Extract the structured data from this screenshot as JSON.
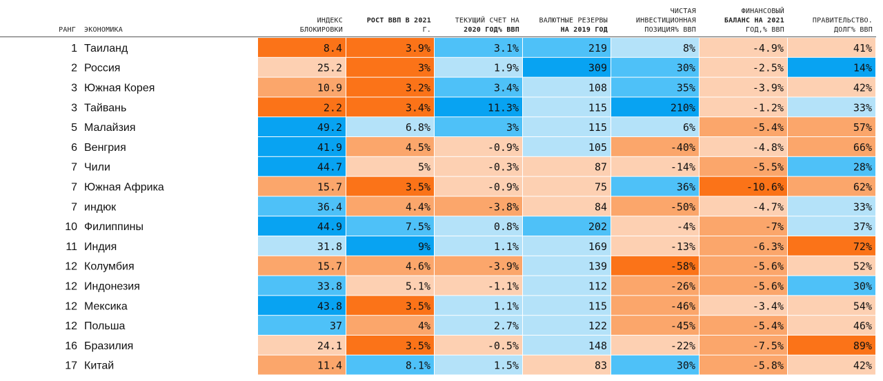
{
  "chart_data": {
    "type": "table",
    "colors": {
      "orange_strong": "#fb7318",
      "orange_mid": "#fba66b",
      "orange_light": "#fdd0b2",
      "blue_light": "#b4e2f9",
      "blue_mid": "#4ec1f8",
      "blue_strong": "#08a3f2",
      "header_rule": "#555555"
    },
    "headers": {
      "rank": "РАНГ",
      "economy": "ЭКОНОМИКА",
      "columns": [
        {
          "key": "lockdown",
          "lines": [
            "ИНДЕКС",
            "БЛОКИРОВКИ"
          ]
        },
        {
          "key": "gdp_growth",
          "lines": [
            "РОСТ ВВП В 2021",
            "Г."
          ]
        },
        {
          "key": "current_account",
          "lines": [
            "ТЕКУЩИЙ СЧЕТ НА",
            "2020 ГОД% ВВП"
          ]
        },
        {
          "key": "fx_reserves",
          "lines": [
            "ВАЛЮТНЫЕ РЕЗЕРВЫ",
            "НА 2019 ГОД"
          ]
        },
        {
          "key": "niip",
          "lines": [
            "ЧИСТАЯ",
            "ИНВЕСТИЦИОННАЯ",
            "ПОЗИЦИЯ% ВВП"
          ]
        },
        {
          "key": "fiscal_balance",
          "lines": [
            "ФИНАНСОВЫЙ",
            "БАЛАНС НА 2021",
            "ГОД,% ВВП"
          ]
        },
        {
          "key": "gov_debt",
          "lines": [
            "ПРАВИТЕЛЬСТВО.",
            "ДОЛГ% ВВП"
          ]
        }
      ]
    },
    "rows": [
      {
        "rank": "1",
        "economy": "Таиланд",
        "values": [
          "8.4",
          "3.9%",
          "3.1%",
          "219",
          "8%",
          "-4.9%",
          "41%"
        ],
        "shades": [
          "orange_strong",
          "orange_strong",
          "blue_mid",
          "blue_mid",
          "blue_light",
          "orange_light",
          "orange_light"
        ]
      },
      {
        "rank": "2",
        "economy": "Россия",
        "values": [
          "25.2",
          "3%",
          "1.9%",
          "309",
          "30%",
          "-2.5%",
          "14%"
        ],
        "shades": [
          "orange_light",
          "orange_strong",
          "blue_light",
          "blue_strong",
          "blue_mid",
          "orange_light",
          "blue_strong"
        ]
      },
      {
        "rank": "3",
        "economy": "Южная Корея",
        "values": [
          "10.9",
          "3.2%",
          "3.4%",
          "108",
          "35%",
          "-3.9%",
          "42%"
        ],
        "shades": [
          "orange_mid",
          "orange_strong",
          "blue_mid",
          "blue_light",
          "blue_mid",
          "orange_light",
          "orange_light"
        ]
      },
      {
        "rank": "3",
        "economy": "Тайвань",
        "values": [
          "2.2",
          "3.4%",
          "11.3%",
          "115",
          "210%",
          "-1.2%",
          "33%"
        ],
        "shades": [
          "orange_strong",
          "orange_strong",
          "blue_strong",
          "blue_light",
          "blue_strong",
          "orange_light",
          "blue_light"
        ]
      },
      {
        "rank": "5",
        "economy": "Малайзия",
        "values": [
          "49.2",
          "6.8%",
          "3%",
          "115",
          "6%",
          "-5.4%",
          "57%"
        ],
        "shades": [
          "blue_strong",
          "blue_light",
          "blue_mid",
          "blue_light",
          "blue_light",
          "orange_mid",
          "orange_mid"
        ]
      },
      {
        "rank": "6",
        "economy": "Венгрия",
        "values": [
          "41.9",
          "4.5%",
          "-0.9%",
          "105",
          "-40%",
          "-4.8%",
          "66%"
        ],
        "shades": [
          "blue_strong",
          "orange_mid",
          "orange_light",
          "blue_light",
          "orange_mid",
          "orange_light",
          "orange_mid"
        ]
      },
      {
        "rank": "7",
        "economy": "Чили",
        "values": [
          "44.7",
          "5%",
          "-0.3%",
          "87",
          "-14%",
          "-5.5%",
          "28%"
        ],
        "shades": [
          "blue_strong",
          "orange_light",
          "orange_light",
          "orange_light",
          "orange_light",
          "orange_mid",
          "blue_mid"
        ]
      },
      {
        "rank": "7",
        "economy": "Южная Африка",
        "values": [
          "15.7",
          "3.5%",
          "-0.9%",
          "75",
          "36%",
          "-10.6%",
          "62%"
        ],
        "shades": [
          "orange_mid",
          "orange_strong",
          "orange_light",
          "orange_light",
          "blue_mid",
          "orange_strong",
          "orange_mid"
        ]
      },
      {
        "rank": "7",
        "economy": "индюк",
        "values": [
          "36.4",
          "4.4%",
          "-3.8%",
          "84",
          "-50%",
          "-4.7%",
          "33%"
        ],
        "shades": [
          "blue_mid",
          "orange_mid",
          "orange_mid",
          "orange_light",
          "orange_mid",
          "orange_light",
          "blue_light"
        ]
      },
      {
        "rank": "10",
        "economy": "Филиппины",
        "values": [
          "44.9",
          "7.5%",
          "0.8%",
          "202",
          "-4%",
          "-7%",
          "37%"
        ],
        "shades": [
          "blue_strong",
          "blue_mid",
          "blue_light",
          "blue_mid",
          "orange_light",
          "orange_mid",
          "blue_light"
        ]
      },
      {
        "rank": "11",
        "economy": "Индия",
        "values": [
          "31.8",
          "9%",
          "1.1%",
          "169",
          "-13%",
          "-6.3%",
          "72%"
        ],
        "shades": [
          "blue_light",
          "blue_strong",
          "blue_light",
          "blue_light",
          "orange_light",
          "orange_mid",
          "orange_strong"
        ]
      },
      {
        "rank": "12",
        "economy": "Колумбия",
        "values": [
          "15.7",
          "4.6%",
          "-3.9%",
          "139",
          "-58%",
          "-5.6%",
          "52%"
        ],
        "shades": [
          "orange_mid",
          "orange_mid",
          "orange_mid",
          "blue_light",
          "orange_strong",
          "orange_mid",
          "orange_light"
        ]
      },
      {
        "rank": "12",
        "economy": "Индонезия",
        "values": [
          "33.8",
          "5.1%",
          "-1.1%",
          "112",
          "-26%",
          "-5.6%",
          "30%"
        ],
        "shades": [
          "blue_mid",
          "orange_light",
          "orange_light",
          "blue_light",
          "orange_mid",
          "orange_mid",
          "blue_mid"
        ]
      },
      {
        "rank": "12",
        "economy": "Мексика",
        "values": [
          "43.8",
          "3.5%",
          "1.1%",
          "115",
          "-46%",
          "-3.4%",
          "54%"
        ],
        "shades": [
          "blue_strong",
          "orange_strong",
          "blue_light",
          "blue_light",
          "orange_mid",
          "orange_light",
          "orange_light"
        ]
      },
      {
        "rank": "12",
        "economy": "Польша",
        "values": [
          "37",
          "4%",
          "2.7%",
          "122",
          "-45%",
          "-5.4%",
          "46%"
        ],
        "shades": [
          "blue_mid",
          "orange_mid",
          "blue_light",
          "blue_light",
          "orange_mid",
          "orange_mid",
          "orange_light"
        ]
      },
      {
        "rank": "16",
        "economy": "Бразилия",
        "values": [
          "24.1",
          "3.5%",
          "-0.5%",
          "148",
          "-22%",
          "-7.5%",
          "89%"
        ],
        "shades": [
          "orange_light",
          "orange_strong",
          "orange_light",
          "blue_light",
          "orange_light",
          "orange_mid",
          "orange_strong"
        ]
      },
      {
        "rank": "17",
        "economy": "Китай",
        "values": [
          "11.4",
          "8.1%",
          "1.5%",
          "83",
          "30%",
          "-5.8%",
          "42%"
        ],
        "shades": [
          "orange_mid",
          "blue_mid",
          "blue_light",
          "orange_light",
          "blue_mid",
          "orange_mid",
          "orange_light"
        ]
      }
    ]
  }
}
